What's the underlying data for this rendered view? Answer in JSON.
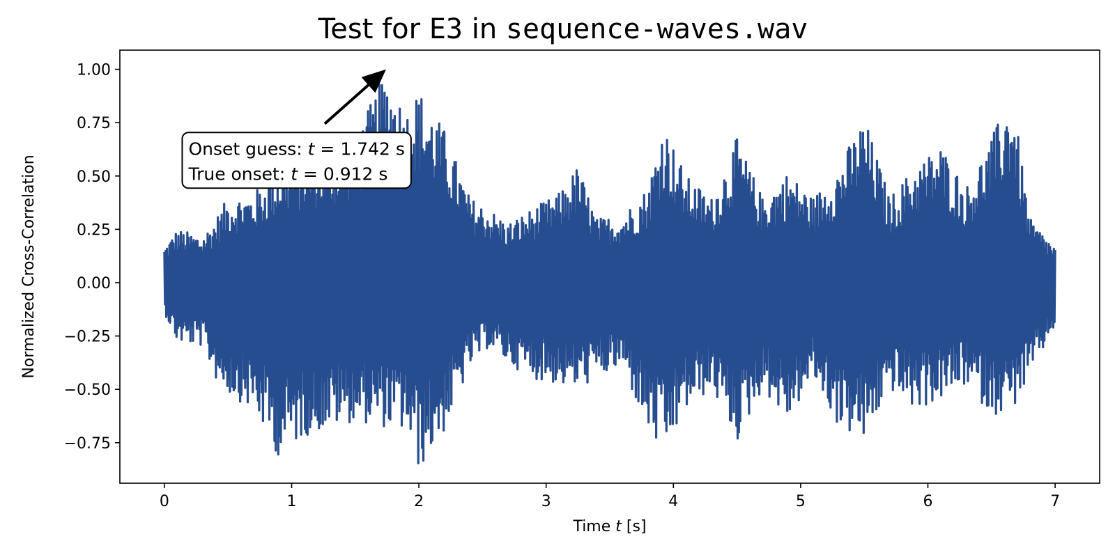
{
  "chart_data": {
    "type": "line",
    "title": {
      "part1": "Test for ",
      "part2": "E3",
      "part3": " in ",
      "part4": "sequence-waves.wav"
    },
    "xlabel": {
      "prefix": "Time ",
      "var": "t",
      "suffix": " [s]"
    },
    "ylabel": "Normalized Cross-Correlation",
    "xlim": [
      -0.35,
      7.35
    ],
    "ylim": [
      -0.94,
      1.09
    ],
    "xticks": [
      0,
      1,
      2,
      3,
      4,
      5,
      6,
      7
    ],
    "xtick_labels": [
      "0",
      "1",
      "2",
      "3",
      "4",
      "5",
      "6",
      "7"
    ],
    "yticks": [
      -0.75,
      -0.5,
      -0.25,
      0.0,
      0.25,
      0.5,
      0.75,
      1.0
    ],
    "ytick_labels": [
      "−0.75",
      "−0.50",
      "−0.25",
      "0.00",
      "0.25",
      "0.50",
      "0.75",
      "1.00"
    ],
    "grid": false,
    "series": [
      {
        "color": "#264d8f",
        "x_range": [
          0,
          7
        ],
        "envelope": {
          "t": [
            0.0,
            0.1,
            0.3,
            0.4,
            0.5,
            0.7,
            0.9,
            1.1,
            1.3,
            1.5,
            1.742,
            1.9,
            2.0,
            2.2,
            2.4,
            2.55,
            2.7,
            2.9,
            3.1,
            3.25,
            3.4,
            3.6,
            3.8,
            3.92,
            4.1,
            4.3,
            4.5,
            4.7,
            4.9,
            5.1,
            5.3,
            5.5,
            5.7,
            5.9,
            6.1,
            6.3,
            6.5,
            6.66,
            6.8,
            7.0
          ],
          "upper": [
            0.17,
            0.25,
            0.22,
            0.3,
            0.4,
            0.42,
            0.55,
            0.6,
            0.62,
            0.68,
            1.0,
            0.82,
            0.91,
            0.72,
            0.4,
            0.35,
            0.28,
            0.35,
            0.42,
            0.55,
            0.3,
            0.32,
            0.45,
            0.76,
            0.5,
            0.4,
            0.68,
            0.4,
            0.52,
            0.4,
            0.55,
            0.78,
            0.4,
            0.55,
            0.65,
            0.45,
            0.68,
            0.9,
            0.3,
            0.17
          ],
          "lower": [
            -0.14,
            -0.28,
            -0.3,
            -0.45,
            -0.52,
            -0.6,
            -0.82,
            -0.72,
            -0.68,
            -0.65,
            -0.68,
            -0.7,
            -0.88,
            -0.7,
            -0.4,
            -0.3,
            -0.38,
            -0.45,
            -0.48,
            -0.5,
            -0.45,
            -0.4,
            -0.7,
            -0.82,
            -0.6,
            -0.5,
            -0.75,
            -0.5,
            -0.65,
            -0.45,
            -0.68,
            -0.75,
            -0.5,
            -0.6,
            -0.55,
            -0.48,
            -0.62,
            -0.6,
            -0.45,
            -0.2
          ]
        }
      }
    ],
    "annotation": {
      "line1": {
        "prefix": "Onset guess: ",
        "var": "t",
        "suffix": " = 1.742 s"
      },
      "line2": {
        "prefix": "True onset: ",
        "var": "t",
        "suffix": " = 0.912 s"
      },
      "arrow_target": [
        1.742,
        1.0
      ],
      "arrow_tail": [
        1.26,
        0.745
      ],
      "box_anchor": [
        0.14,
        0.58
      ]
    }
  }
}
